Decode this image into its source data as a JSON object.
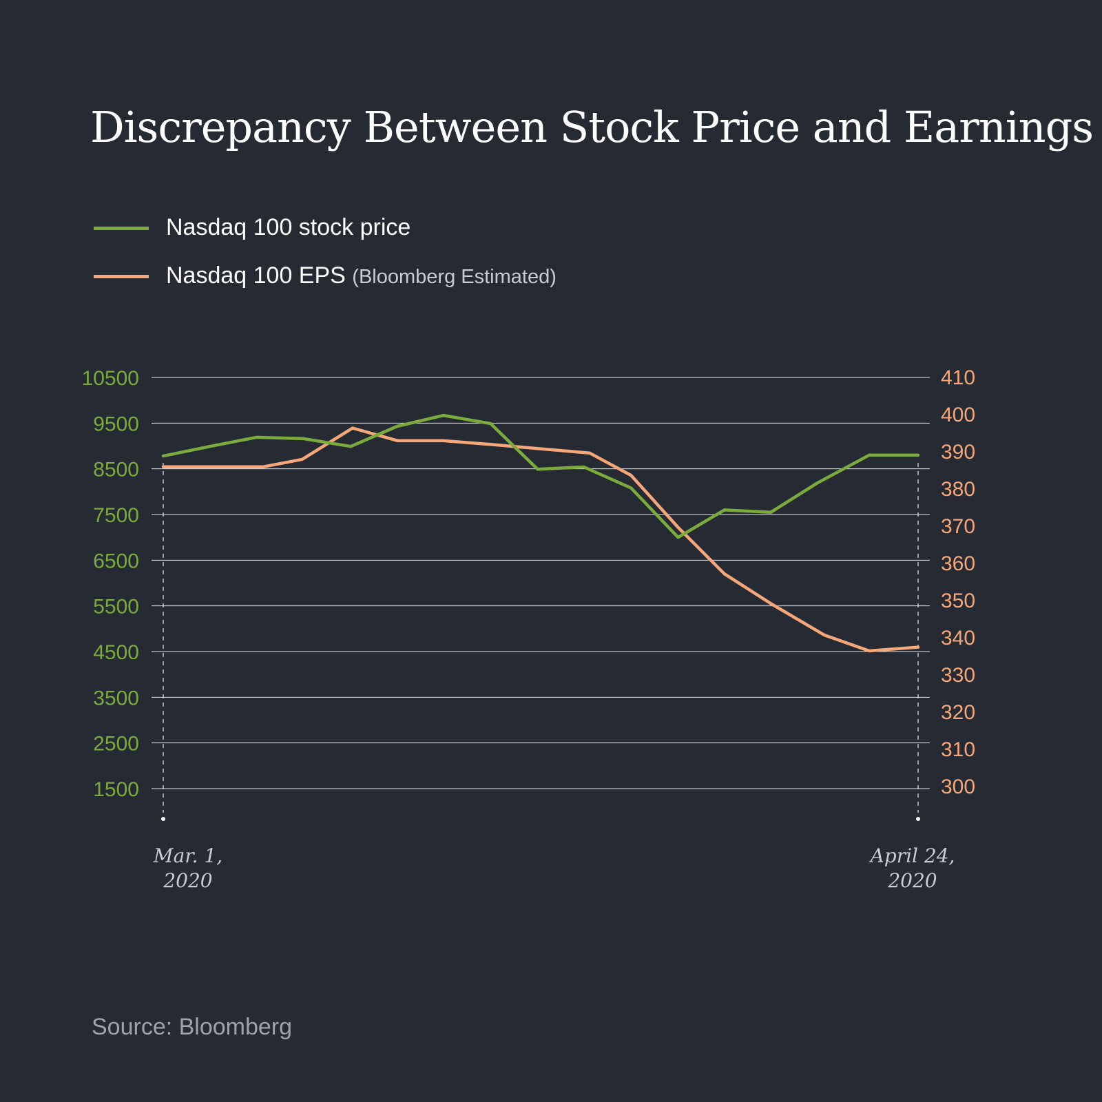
{
  "colors": {
    "background": "#262b33",
    "price": "#7bab3c",
    "eps": "#f5a77a",
    "grid": "#e6e8ea",
    "date": "#c9ccd1",
    "source": "#9ea3aa"
  },
  "title": "Discrepancy Between Stock Price and Earnings",
  "legend": {
    "price_label": "Nasdaq 100 stock price",
    "eps_label": "Nasdaq 100 EPS",
    "eps_note": "(Bloomberg Estimated)"
  },
  "source": "Source: Bloomberg",
  "chart_data": {
    "type": "line",
    "title": "Discrepancy Between Stock Price and Earnings",
    "x_start_label": [
      "Mar. 1,",
      "2020"
    ],
    "x_end_label": [
      "April 24,",
      "2020"
    ],
    "grid": true,
    "legend_position": "top-left",
    "y_left": {
      "ticks": [
        10500,
        9500,
        8500,
        7500,
        6500,
        5500,
        4500,
        3500,
        2500,
        1500
      ],
      "range": [
        1500,
        10500
      ]
    },
    "y_right": {
      "ticks": [
        410,
        400,
        390,
        380,
        370,
        360,
        350,
        340,
        330,
        320,
        310,
        300
      ],
      "range": [
        300,
        410
      ]
    },
    "series": [
      {
        "name": "Nasdaq 100 stock price",
        "axis": "left",
        "color": "#7bab3c",
        "values": [
          8780,
          8990,
          9190,
          9160,
          8990,
          9430,
          9670,
          9490,
          8490,
          8540,
          8080,
          7000,
          7600,
          7550,
          8190,
          8800,
          8800
        ],
        "x_fractions": [
          0,
          0.0617,
          0.1236,
          0.1861,
          0.2484,
          0.3098,
          0.3713,
          0.4337,
          0.496,
          0.5573,
          0.6197,
          0.682,
          0.7434,
          0.805,
          0.8666,
          0.9352,
          1
        ]
      },
      {
        "name": "Nasdaq 100 EPS",
        "axis": "right",
        "color": "#f5a77a",
        "values": [
          385.8,
          385.8,
          385.8,
          387.8,
          396.2,
          392.8,
          392.8,
          391.8,
          390.7,
          389.5,
          383.5,
          369.5,
          357.0,
          349.0,
          340.5,
          336.3,
          337.3
        ],
        "x_fractions": [
          0,
          0.0617,
          0.1328,
          0.1842,
          0.2508,
          0.3107,
          0.3713,
          0.4337,
          0.496,
          0.5648,
          0.6197,
          0.682,
          0.7434,
          0.805,
          0.8763,
          0.9352,
          1
        ]
      }
    ]
  }
}
